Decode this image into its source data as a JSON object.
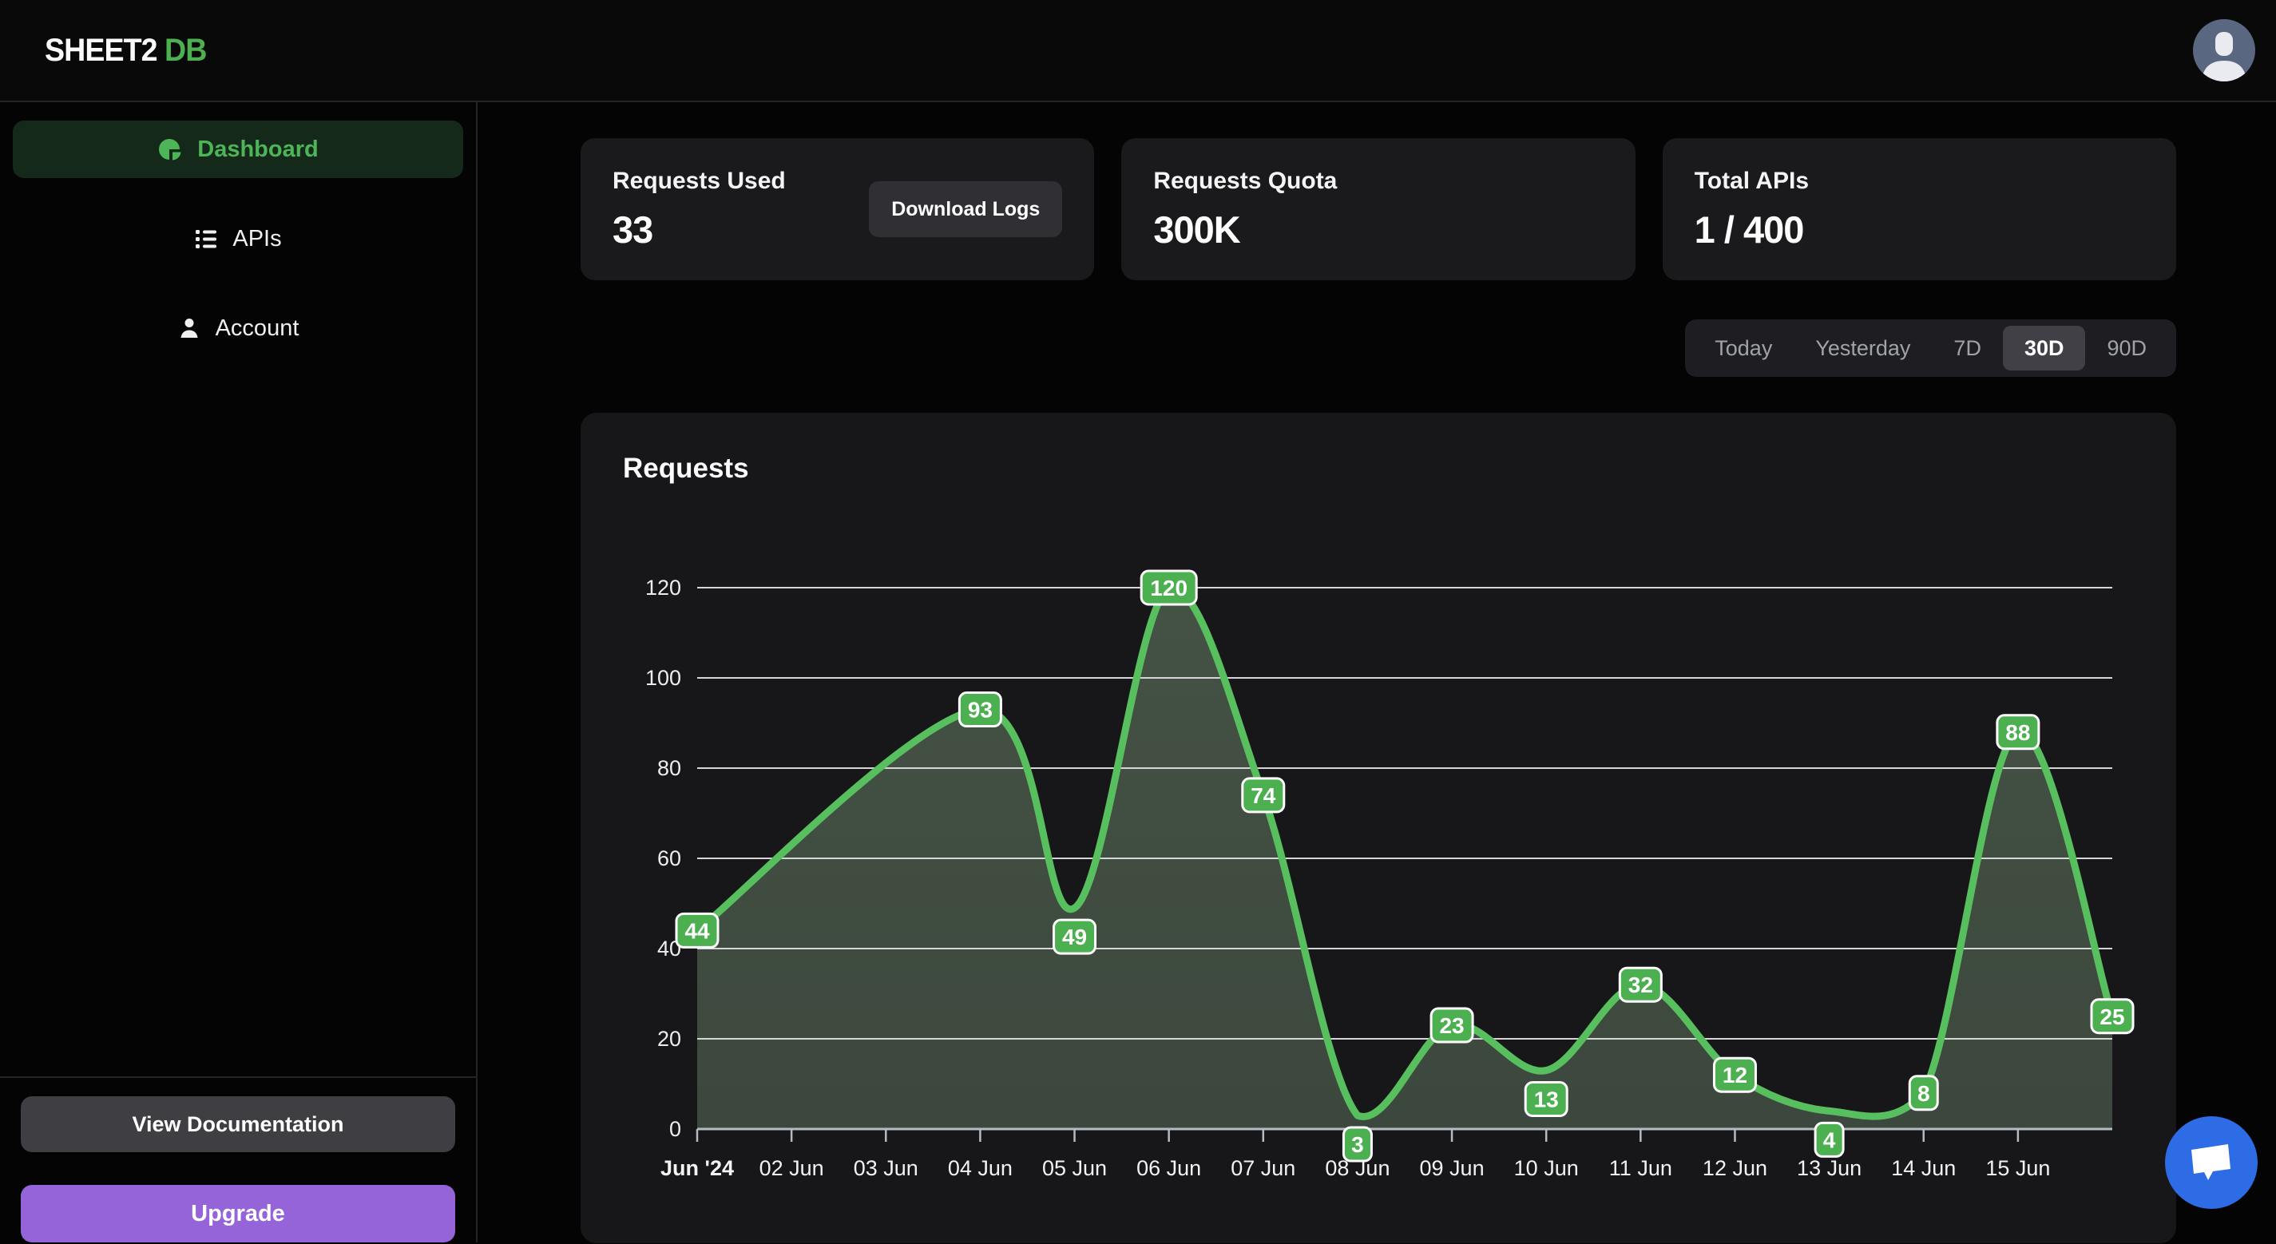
{
  "header": {
    "logo_primary": "SHEET2",
    "logo_secondary": "DB",
    "avatar": "user-avatar"
  },
  "sidebar": {
    "items": [
      {
        "label": "Dashboard",
        "icon": "pie-chart",
        "active": true
      },
      {
        "label": "APIs",
        "icon": "list",
        "active": false
      },
      {
        "label": "Account",
        "icon": "person",
        "active": false
      }
    ],
    "docs_button": "View Documentation",
    "upgrade_button": "Upgrade"
  },
  "stats": [
    {
      "title": "Requests Used",
      "value": "33",
      "action": "Download Logs"
    },
    {
      "title": "Requests Quota",
      "value": "300K"
    },
    {
      "title": "Total APIs",
      "value": "1 / 400"
    }
  ],
  "range_tabs": {
    "options": [
      "Today",
      "Yesterday",
      "7D",
      "30D",
      "90D"
    ],
    "active": "30D"
  },
  "chart_data": {
    "type": "area",
    "title": "Requests",
    "series": [
      {
        "name": "Requests",
        "points": [
          [
            1,
            44
          ],
          [
            4,
            93
          ],
          [
            5,
            49
          ],
          [
            6,
            120
          ],
          [
            7,
            74
          ],
          [
            8,
            3
          ],
          [
            9,
            23
          ],
          [
            10,
            13
          ],
          [
            11,
            32
          ],
          [
            12,
            12
          ],
          [
            13,
            4
          ],
          [
            14,
            8
          ],
          [
            15,
            88
          ],
          [
            16,
            25
          ]
        ]
      }
    ],
    "x_tick_labels": [
      "Jun '24",
      "02 Jun",
      "03 Jun",
      "04 Jun",
      "05 Jun",
      "06 Jun",
      "07 Jun",
      "08 Jun",
      "09 Jun",
      "10 Jun",
      "11 Jun",
      "12 Jun",
      "13 Jun",
      "14 Jun",
      "15 Jun"
    ],
    "x_domain": [
      1,
      16
    ],
    "ylim": [
      0,
      120
    ],
    "y_ticks": [
      0,
      20,
      40,
      60,
      80,
      100,
      120
    ],
    "grid": "horizontal",
    "legend": false,
    "smooth": true,
    "colors": {
      "line": "#58bf5e",
      "fill": "#9cc599",
      "badge": "#4caf50",
      "badge_border": "#ffffff",
      "grid": "#d6d6d9",
      "axis": "#b7bac0"
    }
  },
  "colors": {
    "accent_green": "#4caf50",
    "accent_purple": "#9464d8",
    "chat_blue": "#2d6ce5"
  }
}
